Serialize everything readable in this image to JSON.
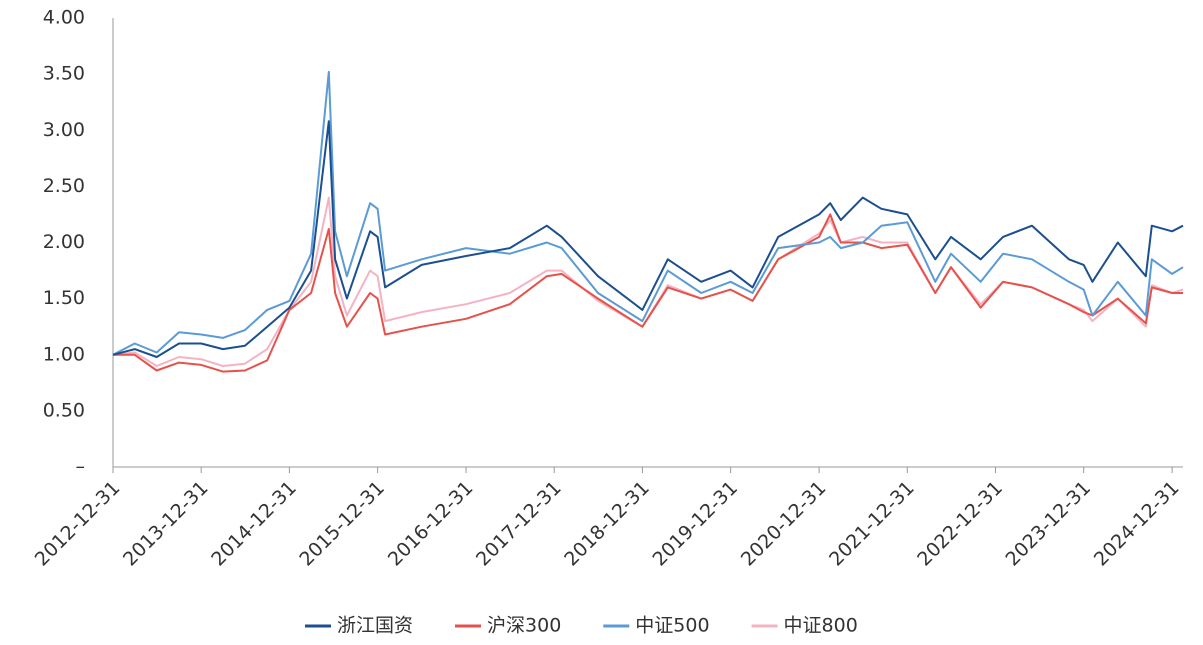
{
  "chart_data": {
    "type": "line",
    "x": [
      "2012-12-31",
      "2013-03-31",
      "2013-06-30",
      "2013-09-30",
      "2013-12-31",
      "2014-03-31",
      "2014-06-30",
      "2014-09-30",
      "2014-12-31",
      "2015-03-31",
      "2015-06-12",
      "2015-07-08",
      "2015-08-26",
      "2015-11-30",
      "2015-12-31",
      "2016-01-31",
      "2016-06-30",
      "2016-12-31",
      "2017-06-30",
      "2017-11-30",
      "2018-01-31",
      "2018-06-30",
      "2018-12-31",
      "2019-04-15",
      "2019-08-31",
      "2019-12-31",
      "2020-03-31",
      "2020-07-15",
      "2020-12-31",
      "2021-02-15",
      "2021-03-31",
      "2021-06-30",
      "2021-09-15",
      "2021-12-31",
      "2022-04-26",
      "2022-06-30",
      "2022-10-31",
      "2023-01-31",
      "2023-05-31",
      "2023-10-31",
      "2023-12-31",
      "2024-02-05",
      "2024-05-20",
      "2024-09-13",
      "2024-10-08",
      "2024-12-31",
      "2025-02-14"
    ],
    "series": [
      {
        "name": "中证800",
        "color": "#f4b3c2",
        "values": [
          1.0,
          1.02,
          0.9,
          0.98,
          0.96,
          0.9,
          0.92,
          1.05,
          1.4,
          1.65,
          2.4,
          1.7,
          1.35,
          1.75,
          1.7,
          1.3,
          1.38,
          1.45,
          1.55,
          1.75,
          1.75,
          1.48,
          1.25,
          1.62,
          1.5,
          1.58,
          1.48,
          1.85,
          2.08,
          2.2,
          2.0,
          2.05,
          2.0,
          2.0,
          1.55,
          1.78,
          1.45,
          1.65,
          1.6,
          1.45,
          1.4,
          1.3,
          1.5,
          1.25,
          1.62,
          1.55,
          1.58
        ]
      },
      {
        "name": "沪深300",
        "color": "#e5524b",
        "values": [
          1.0,
          1.0,
          0.86,
          0.93,
          0.91,
          0.85,
          0.86,
          0.95,
          1.4,
          1.55,
          2.12,
          1.55,
          1.25,
          1.55,
          1.5,
          1.18,
          1.25,
          1.32,
          1.45,
          1.7,
          1.72,
          1.5,
          1.25,
          1.6,
          1.5,
          1.58,
          1.48,
          1.85,
          2.05,
          2.25,
          2.0,
          2.0,
          1.95,
          1.98,
          1.55,
          1.78,
          1.42,
          1.65,
          1.6,
          1.45,
          1.38,
          1.35,
          1.5,
          1.28,
          1.6,
          1.55,
          1.55
        ]
      },
      {
        "name": "中证500",
        "color": "#5b9bd5",
        "values": [
          1.0,
          1.1,
          1.02,
          1.2,
          1.18,
          1.15,
          1.22,
          1.4,
          1.48,
          1.9,
          3.52,
          2.1,
          1.7,
          2.35,
          2.3,
          1.75,
          1.85,
          1.95,
          1.9,
          2.0,
          1.95,
          1.55,
          1.3,
          1.75,
          1.55,
          1.65,
          1.55,
          1.95,
          2.0,
          2.05,
          1.95,
          2.0,
          2.15,
          2.18,
          1.65,
          1.9,
          1.65,
          1.9,
          1.85,
          1.65,
          1.58,
          1.35,
          1.65,
          1.35,
          1.85,
          1.72,
          1.78
        ]
      },
      {
        "name": "浙江国资",
        "color": "#1b4f8f",
        "values": [
          1.0,
          1.05,
          0.98,
          1.1,
          1.1,
          1.05,
          1.08,
          1.25,
          1.42,
          1.75,
          3.08,
          1.85,
          1.5,
          2.1,
          2.05,
          1.6,
          1.8,
          1.88,
          1.95,
          2.15,
          2.05,
          1.7,
          1.4,
          1.85,
          1.65,
          1.75,
          1.6,
          2.05,
          2.25,
          2.35,
          2.2,
          2.4,
          2.3,
          2.25,
          1.85,
          2.05,
          1.85,
          2.05,
          2.15,
          1.85,
          1.8,
          1.65,
          2.0,
          1.7,
          2.15,
          2.1,
          2.15
        ]
      }
    ],
    "xlim": [
      "2012-12-31",
      "2025-02-14"
    ],
    "xticks": [
      "2012-12-31",
      "2013-12-31",
      "2014-12-31",
      "2015-12-31",
      "2016-12-31",
      "2017-12-31",
      "2018-12-31",
      "2019-12-31",
      "2020-12-31",
      "2021-12-31",
      "2022-12-31",
      "2023-12-31",
      "2024-12-31"
    ],
    "ylim": [
      0,
      4
    ],
    "yticks": [
      {
        "value": 0,
        "label": "–"
      },
      {
        "value": 0.5,
        "label": "0.50"
      },
      {
        "value": 1,
        "label": "1.00"
      },
      {
        "value": 1.5,
        "label": "1.50"
      },
      {
        "value": 2,
        "label": "2.00"
      },
      {
        "value": 2.5,
        "label": "2.50"
      },
      {
        "value": 3,
        "label": "3.00"
      },
      {
        "value": 3.5,
        "label": "3.50"
      },
      {
        "value": 4,
        "label": "4.00"
      }
    ],
    "legend_order": [
      3,
      1,
      2,
      0
    ]
  }
}
